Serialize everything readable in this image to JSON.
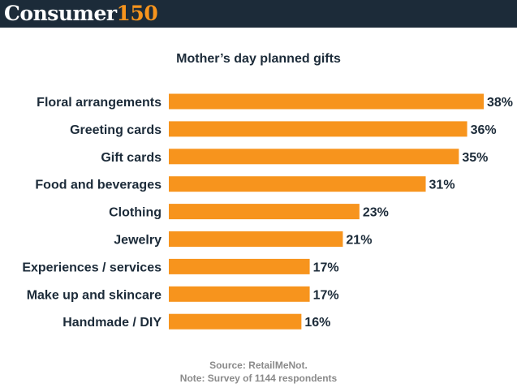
{
  "header": {
    "brand_word": "Consumer",
    "brand_number": "150",
    "bg_color": "#1c2b39",
    "accent_color": "#f7941d"
  },
  "chart_data": {
    "type": "bar",
    "orientation": "horizontal",
    "title": "Mother’s day planned gifts",
    "categories": [
      "Floral arrangements",
      "Greeting cards",
      "Gift cards",
      "Food and beverages",
      "Clothing",
      "Jewelry",
      "Experiences / services",
      "Make up and skincare",
      "Handmade / DIY"
    ],
    "values": [
      38,
      36,
      35,
      31,
      23,
      21,
      17,
      17,
      16
    ],
    "value_labels": [
      "38%",
      "36%",
      "35%",
      "31%",
      "23%",
      "21%",
      "17%",
      "17%",
      "16%"
    ],
    "unit": "%",
    "xlim": [
      0,
      38
    ],
    "bar_color": "#f7941d",
    "label_color": "#1c2b39",
    "xlabel": "",
    "ylabel": ""
  },
  "footer": {
    "source": "Source: RetailMeNot.",
    "note": "Note: Survey of 1144 respondents"
  }
}
